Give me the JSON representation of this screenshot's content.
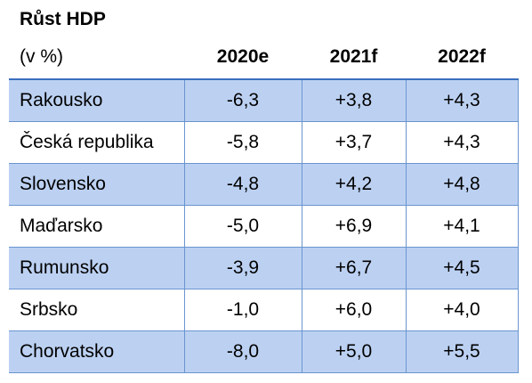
{
  "chart_data": {
    "type": "table",
    "title": "Růst HDP",
    "unit_label": "(v %)",
    "columns": [
      "2020e",
      "2021f",
      "2022f"
    ],
    "rows": [
      {
        "label": "Rakousko",
        "values": [
          "-6,3",
          "+3,8",
          "+4,3"
        ]
      },
      {
        "label": "Česká republika",
        "values": [
          "-5,8",
          "+3,7",
          "+4,3"
        ]
      },
      {
        "label": "Slovensko",
        "values": [
          "-4,8",
          "+4,2",
          "+4,8"
        ]
      },
      {
        "label": "Maďarsko",
        "values": [
          "-5,0",
          "+6,9",
          "+4,1"
        ]
      },
      {
        "label": "Rumunsko",
        "values": [
          "-3,9",
          "+6,7",
          "+4,5"
        ]
      },
      {
        "label": "Srbsko",
        "values": [
          "-1,0",
          "+6,0",
          "+4,0"
        ]
      },
      {
        "label": "Chorvatsko",
        "values": [
          "-8,0",
          "+5,0",
          "+5,5"
        ]
      }
    ],
    "colors": {
      "shaded_row": "#bcd1f2",
      "border": "#6a94cf",
      "header_rule": "#3a6fbf"
    }
  }
}
